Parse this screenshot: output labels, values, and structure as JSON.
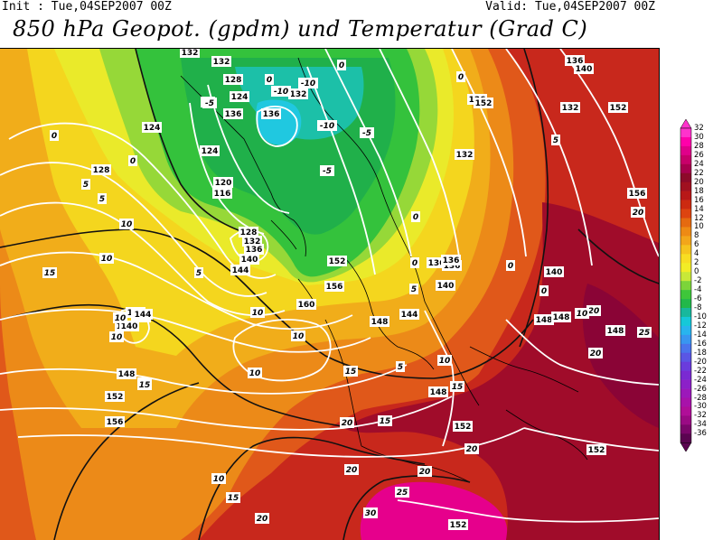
{
  "header": {
    "init": "Init : Tue,04SEP2007 00Z",
    "valid": "Valid: Tue,04SEP2007 00Z",
    "title": "850 hPa Geopot. (gpdm) und Temperatur (Grad C)"
  },
  "colorbar": {
    "labels": [
      "32",
      "30",
      "28",
      "26",
      "24",
      "22",
      "20",
      "18",
      "16",
      "14",
      "12",
      "10",
      "8",
      "6",
      "4",
      "2",
      "0",
      "-2",
      "-4",
      "-6",
      "-8",
      "-10",
      "-12",
      "-14",
      "-16",
      "-18",
      "-20",
      "-22",
      "-24",
      "-26",
      "-28",
      "-30",
      "-32",
      "-34",
      "-36"
    ],
    "colors": [
      "#ff33cc",
      "#ff00aa",
      "#e0008a",
      "#c8006a",
      "#a8004e",
      "#8c0a2a",
      "#a01020",
      "#b81818",
      "#cc2a10",
      "#dd4410",
      "#e56a10",
      "#ee8a14",
      "#f3a61a",
      "#f6c41e",
      "#f8dd22",
      "#f2ec26",
      "#c8e838",
      "#7cd43a",
      "#3ec63a",
      "#22b84a",
      "#18b89c",
      "#16c8d8",
      "#28b4ee",
      "#3896f0",
      "#4a74ec",
      "#5a56e4",
      "#6a3cdc",
      "#7a2ad2",
      "#8c20c8",
      "#9c18ba",
      "#a812aa",
      "#b00e98",
      "#9a0a84",
      "#7a066a",
      "#5a0450"
    ]
  },
  "geopotential_labels": [
    {
      "text": "132"
    },
    {
      "text": "132"
    },
    {
      "text": "128"
    },
    {
      "text": "124"
    },
    {
      "text": "136"
    },
    {
      "text": "136"
    },
    {
      "text": "132"
    },
    {
      "text": "128"
    },
    {
      "text": "124"
    },
    {
      "text": "124"
    },
    {
      "text": "120"
    },
    {
      "text": "116"
    },
    {
      "text": "128"
    },
    {
      "text": "132"
    },
    {
      "text": "136"
    },
    {
      "text": "140"
    },
    {
      "text": "144"
    },
    {
      "text": "140"
    },
    {
      "text": "144"
    },
    {
      "text": "148"
    },
    {
      "text": "136"
    },
    {
      "text": "136"
    },
    {
      "text": "140"
    },
    {
      "text": "144"
    },
    {
      "text": "148"
    },
    {
      "text": "152"
    },
    {
      "text": "156"
    },
    {
      "text": "160"
    },
    {
      "text": "140"
    },
    {
      "text": "144"
    },
    {
      "text": "148"
    },
    {
      "text": "152"
    },
    {
      "text": "156"
    },
    {
      "text": "148"
    },
    {
      "text": "152"
    },
    {
      "text": "152"
    },
    {
      "text": "152"
    },
    {
      "text": "148"
    },
    {
      "text": "148"
    },
    {
      "text": "140"
    },
    {
      "text": "136"
    },
    {
      "text": "132"
    },
    {
      "text": "136"
    },
    {
      "text": "148"
    },
    {
      "text": "152"
    },
    {
      "text": "156"
    },
    {
      "text": "132"
    },
    {
      "text": "136"
    },
    {
      "text": "140"
    },
    {
      "text": "152"
    }
  ],
  "temperature_labels": [
    {
      "text": "-5"
    },
    {
      "text": "-10"
    },
    {
      "text": "-10"
    },
    {
      "text": "-10"
    },
    {
      "text": "-5"
    },
    {
      "text": "-5"
    },
    {
      "text": "0"
    },
    {
      "text": "0"
    },
    {
      "text": "0"
    },
    {
      "text": "5"
    },
    {
      "text": "0"
    },
    {
      "text": "-5"
    },
    {
      "text": "0"
    },
    {
      "text": "0"
    },
    {
      "text": "0"
    },
    {
      "text": "5"
    },
    {
      "text": "10"
    },
    {
      "text": "10"
    },
    {
      "text": "5"
    },
    {
      "text": "10"
    },
    {
      "text": "15"
    },
    {
      "text": "10"
    },
    {
      "text": "10"
    },
    {
      "text": "15"
    },
    {
      "text": "10"
    },
    {
      "text": "5"
    },
    {
      "text": "10"
    },
    {
      "text": "15"
    },
    {
      "text": "10"
    },
    {
      "text": "15"
    },
    {
      "text": "20"
    },
    {
      "text": "15"
    },
    {
      "text": "20"
    },
    {
      "text": "20"
    },
    {
      "text": "20"
    },
    {
      "text": "25"
    },
    {
      "text": "20"
    },
    {
      "text": "25"
    },
    {
      "text": "30"
    },
    {
      "text": "20"
    },
    {
      "text": "15"
    },
    {
      "text": "10"
    },
    {
      "text": "10"
    },
    {
      "text": "15"
    },
    {
      "text": "20"
    },
    {
      "text": "20"
    },
    {
      "text": "5"
    },
    {
      "text": "10"
    },
    {
      "text": "0"
    },
    {
      "text": "5"
    },
    {
      "text": "0"
    }
  ]
}
